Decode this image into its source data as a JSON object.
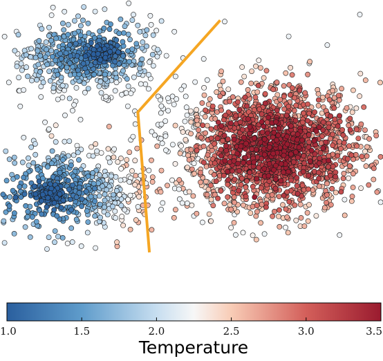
{
  "chart_data": {
    "type": "scatter",
    "title": "",
    "xlabel": "",
    "ylabel": "",
    "axes_visible": false,
    "point_style": "filled circles with dark edge, colored by temperature (RdBu_r colormap)",
    "clusters": [
      {
        "center": [
          -0.55,
          0.62
        ],
        "spread": [
          0.19,
          0.12
        ],
        "dense_core": [
          -0.47,
          0.66
        ],
        "n": 650,
        "temperature_range": [
          1.0,
          2.2
        ]
      },
      {
        "center": [
          -0.62,
          -0.22
        ],
        "spread": [
          0.22,
          0.14
        ],
        "dense_core": [
          -0.74,
          -0.25
        ],
        "n": 650,
        "temperature_range": [
          1.0,
          2.6
        ]
      },
      {
        "center": [
          0.42,
          0.05
        ],
        "spread": [
          0.24,
          0.2
        ],
        "n": 1800,
        "temperature_range": [
          2.2,
          3.5
        ]
      }
    ],
    "boundary_line": {
      "color": "#f5a623",
      "points": [
        [
          0.15,
          0.87
        ],
        [
          -0.28,
          0.28
        ],
        [
          -0.22,
          -0.62
        ]
      ]
    },
    "colorbar": {
      "label": "Temperature",
      "colormap": "RdBu_r",
      "range": [
        1.0,
        3.5
      ],
      "ticks": [
        "1.0",
        "1.5",
        "2.0",
        "2.5",
        "3.0",
        "3.5"
      ]
    }
  }
}
